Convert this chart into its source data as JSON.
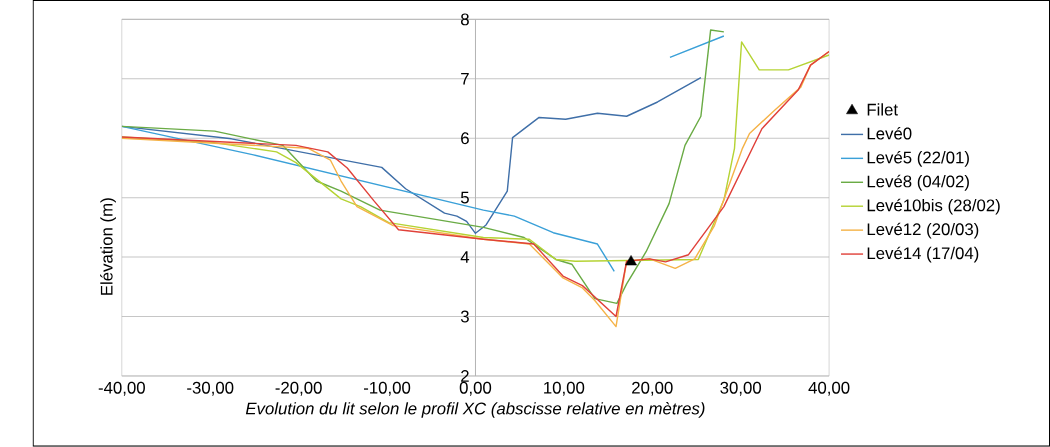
{
  "chart_data": {
    "type": "line",
    "xlabel": "Evolution du lit selon le profil XC (abscisse relative en mètres)",
    "ylabel": "Elévation (m)",
    "xlim": [
      -40,
      40
    ],
    "ylim": [
      2,
      8
    ],
    "xticks": [
      {
        "value": -40,
        "label": "-40,00"
      },
      {
        "value": -30,
        "label": "-30,00"
      },
      {
        "value": -20,
        "label": "-20,00"
      },
      {
        "value": -10,
        "label": "-10,00"
      },
      {
        "value": 0,
        "label": "0,00"
      },
      {
        "value": 10,
        "label": "10,00"
      },
      {
        "value": 20,
        "label": "20,00"
      },
      {
        "value": 30,
        "label": "30,00"
      },
      {
        "value": 40,
        "label": "40,00"
      }
    ],
    "yticks": [
      2,
      3,
      4,
      5,
      6,
      7,
      8
    ],
    "grid": "y",
    "legend": "right",
    "marker": "none",
    "line_style": "solid",
    "series": [
      {
        "name": "Filet",
        "type": "scatter",
        "marker": "triangle",
        "color": "#000000",
        "x": [
          17.6
        ],
        "values": [
          3.92
        ]
      },
      {
        "name": "Levé0",
        "color": "#3f6fa8",
        "x": [
          -40,
          -27.6,
          -10.6,
          -7.9,
          -3.5,
          -2.1,
          -1,
          0,
          1.2,
          3.6,
          4.2,
          7.2,
          10.2,
          13.8,
          17.1,
          20.6,
          25.5
        ],
        "values": [
          6.2,
          5.99,
          5.51,
          5.15,
          4.74,
          4.69,
          4.6,
          4.4,
          4.54,
          5.11,
          6.01,
          6.35,
          6.32,
          6.42,
          6.37,
          6.61,
          7.02
        ]
      },
      {
        "name": "Levé5 (22/01)",
        "color": "#3aa0d8",
        "x": [
          -40,
          -25.1,
          0.9,
          4.4,
          8.8,
          13.8,
          15.7,
          19,
          22,
          28.1
        ],
        "values": [
          6.2,
          5.72,
          4.79,
          4.69,
          4.41,
          4.22,
          3.76,
          null,
          7.36,
          7.72
        ]
      },
      {
        "name": "Levé8 (04/02)",
        "color": "#6aab45",
        "x": [
          -40,
          -29.5,
          -25.4,
          -21.8,
          -18,
          -15.2,
          -10.8,
          0.9,
          5.5,
          9.1,
          10.9,
          13.5,
          16,
          17.1,
          19.3,
          21.9,
          23.7,
          25.5,
          26.6,
          28.1
        ],
        "values": [
          6.2,
          6.12,
          5.99,
          5.88,
          5.28,
          5.11,
          4.79,
          4.5,
          4.33,
          3.96,
          3.88,
          3.3,
          3.22,
          3.55,
          4.09,
          4.9,
          5.88,
          6.37,
          7.82,
          7.79
        ]
      },
      {
        "name": "Levé10bis (28/02)",
        "color": "#b5d334",
        "x": [
          -40,
          -29.8,
          -22.5,
          -20.3,
          -15.2,
          -13,
          -9.8,
          0.9,
          6.1,
          9.1,
          11.3,
          25.2,
          28.1,
          29.3,
          30.1,
          32.1,
          35.4,
          40
        ],
        "values": [
          6.02,
          5.93,
          5.77,
          5.59,
          4.98,
          4.85,
          4.58,
          4.33,
          4.3,
          3.96,
          3.93,
          3.96,
          4.96,
          5.83,
          7.62,
          7.15,
          7.15,
          7.4
        ]
      },
      {
        "name": "Levé12 (20/03)",
        "color": "#f5b348",
        "x": [
          -40,
          -18.9,
          -16.4,
          -15.2,
          -13.4,
          -9.3,
          0.9,
          6.1,
          9.9,
          12.1,
          13.5,
          15.9,
          17.1,
          19.7,
          22.6,
          24.8,
          27,
          30.2,
          31,
          33.9,
          36.8,
          37.9,
          40
        ],
        "values": [
          6.0,
          5.83,
          5.63,
          5.28,
          4.85,
          4.53,
          4.3,
          4.22,
          3.65,
          3.48,
          3.27,
          2.83,
          3.93,
          3.97,
          3.81,
          3.97,
          4.52,
          5.83,
          6.08,
          6.48,
          6.86,
          7.23,
          7.46
        ]
      },
      {
        "name": "Levé14 (17/04)",
        "color": "#e0413a",
        "x": [
          -40,
          -20.3,
          -16.7,
          -14.5,
          -11.5,
          -8.7,
          0.9,
          6.6,
          9.9,
          12.1,
          15.9,
          17.1,
          19.7,
          21.5,
          24.1,
          28.1,
          32.4,
          36.5,
          37.9,
          40
        ],
        "values": [
          6.02,
          5.88,
          5.77,
          5.5,
          4.95,
          4.46,
          4.3,
          4.22,
          3.68,
          3.52,
          3.0,
          3.93,
          3.97,
          3.92,
          4.04,
          4.85,
          6.16,
          6.81,
          7.23,
          7.46
        ]
      }
    ]
  }
}
